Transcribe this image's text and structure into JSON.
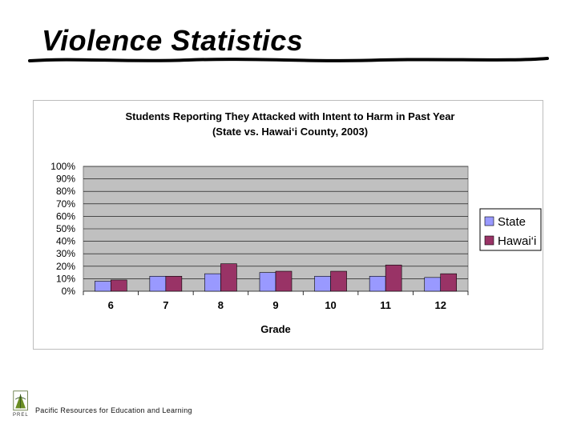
{
  "slide": {
    "title": "Violence Statistics",
    "footer": "Pacific Resources for Education and Learning",
    "logo_text": "PREL"
  },
  "chart_data": {
    "type": "bar",
    "title": "Students Reporting They Attacked with Intent to Harm in Past Year",
    "subtitle": "(State vs. Hawai‘i County, 2003)",
    "xlabel": "Grade",
    "ylabel": "",
    "categories": [
      "6",
      "7",
      "8",
      "9",
      "10",
      "11",
      "12"
    ],
    "series": [
      {
        "name": "State",
        "color": "#9999ff",
        "values": [
          8,
          12,
          14,
          15,
          12,
          12,
          11
        ]
      },
      {
        "name": "Hawai‘i",
        "color": "#993366",
        "values": [
          9,
          12,
          22,
          16,
          16,
          21,
          14
        ]
      }
    ],
    "ylim": [
      0,
      100
    ],
    "yticks": [
      "0%",
      "10%",
      "20%",
      "30%",
      "40%",
      "50%",
      "60%",
      "70%",
      "80%",
      "90%",
      "100%"
    ],
    "grid": true,
    "plot_background": "#c0c0c0",
    "legend_position": "right"
  }
}
